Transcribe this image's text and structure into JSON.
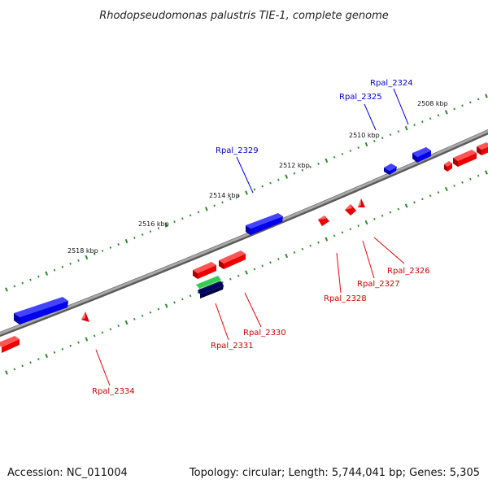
{
  "title": "Rhodopseudomonas palustris TIE-1, complete genome",
  "ticks": [
    {
      "label": "2508 kbp"
    },
    {
      "label": "2510 kbp"
    },
    {
      "label": "2512 kbp"
    },
    {
      "label": "2514 kbp"
    },
    {
      "label": "2516 kbp"
    },
    {
      "label": "2518 kbp"
    }
  ],
  "genes": [
    {
      "name": "Rpal_2324",
      "strand": "forward"
    },
    {
      "name": "Rpal_2325",
      "strand": "forward"
    },
    {
      "name": "Rpal_2329",
      "strand": "forward"
    },
    {
      "name": "Rpal_2326",
      "strand": "reverse"
    },
    {
      "name": "Rpal_2327",
      "strand": "reverse"
    },
    {
      "name": "Rpal_2328",
      "strand": "reverse"
    },
    {
      "name": "Rpal_2330",
      "strand": "reverse"
    },
    {
      "name": "Rpal_2331",
      "strand": "reverse"
    },
    {
      "name": "Rpal_2334",
      "strand": "reverse"
    }
  ],
  "colors": {
    "forward": "#0000ff",
    "reverse": "#ee0000",
    "other_green": "#22bb44",
    "other_navy": "#000066",
    "backbone": "#888888",
    "ticks": "#2a8a2a"
  },
  "footer": {
    "accession": "Accession: NC_011004",
    "summary": "Topology: circular; Length: 5,744,041 bp; Genes: 5,305"
  }
}
